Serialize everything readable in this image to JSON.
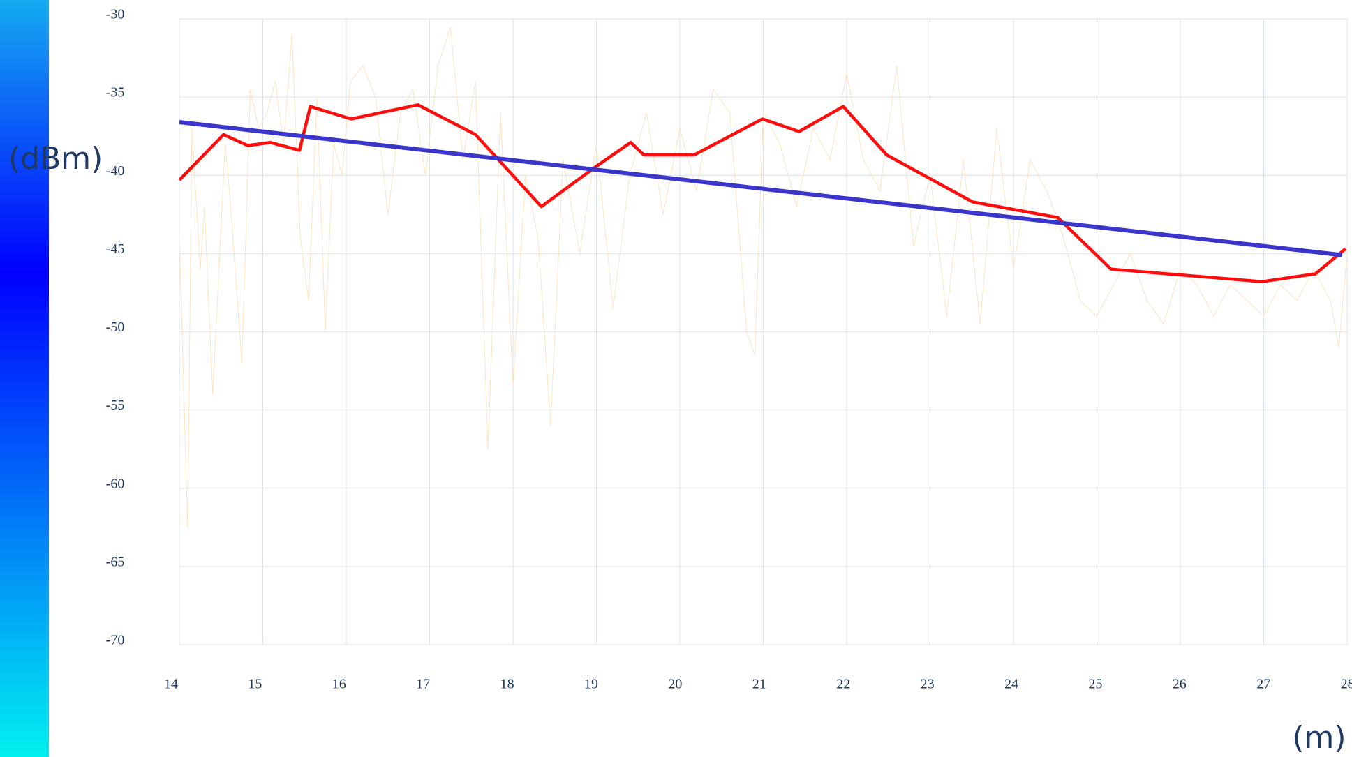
{
  "chart_data": {
    "type": "line",
    "y_label": "(dBm)",
    "x_label": "(m)",
    "xlim": [
      14,
      28
    ],
    "xticks": [
      14,
      15,
      16,
      17,
      18,
      19,
      20,
      21,
      22,
      23,
      24,
      25,
      26,
      27,
      28
    ],
    "ylim": [
      -70,
      -30
    ],
    "yticks": [
      -30,
      -35,
      -40,
      -45,
      -50,
      -55,
      -60,
      -65,
      -70
    ],
    "grid": true,
    "series": [
      {
        "color": "#fde3c4",
        "width": 1,
        "x": [
          14.0,
          14.1,
          14.15,
          14.25,
          14.3,
          14.4,
          14.55,
          14.6,
          14.75,
          14.85,
          14.95,
          15.05,
          15.15,
          15.25,
          15.35,
          15.45,
          15.55,
          15.65,
          15.75,
          15.85,
          15.95,
          16.05,
          16.2,
          16.35,
          16.5,
          16.65,
          16.8,
          16.95,
          17.1,
          17.25,
          17.4,
          17.55,
          17.7,
          17.85,
          18.0,
          18.15,
          18.3,
          18.45,
          18.6,
          18.8,
          19.0,
          19.2,
          19.4,
          19.6,
          19.8,
          20.0,
          20.2,
          20.4,
          20.6,
          20.8,
          20.9,
          21.0,
          21.2,
          21.4,
          21.6,
          21.8,
          22.0,
          22.2,
          22.4,
          22.6,
          22.8,
          23.0,
          23.2,
          23.4,
          23.6,
          23.8,
          24.0,
          24.2,
          24.4,
          24.6,
          24.8,
          25.0,
          25.2,
          25.4,
          25.6,
          25.8,
          26.0,
          26.2,
          26.4,
          26.6,
          26.8,
          27.0,
          27.2,
          27.4,
          27.6,
          27.8,
          27.9,
          28.0
        ],
        "values": [
          -44,
          -62.5,
          -37,
          -46,
          -42,
          -54,
          -38,
          -41,
          -52,
          -34.5,
          -37,
          -36,
          -34,
          -38,
          -31,
          -44,
          -48,
          -35,
          -50,
          -38,
          -40,
          -34,
          -33,
          -35,
          -42.5,
          -36,
          -34.5,
          -40,
          -33,
          -30.5,
          -39,
          -34,
          -57.5,
          -36,
          -53.5,
          -40,
          -44,
          -56,
          -39,
          -45,
          -38,
          -48.5,
          -40,
          -36,
          -42.5,
          -37,
          -41,
          -34.5,
          -36,
          -50,
          -51.5,
          -36,
          -38,
          -42,
          -37,
          -39,
          -33.5,
          -39,
          -41,
          -33,
          -44.5,
          -40,
          -49,
          -39,
          -49.5,
          -37,
          -46,
          -39,
          -41,
          -44,
          -48,
          -49,
          -47,
          -45,
          -48,
          -49.5,
          -46,
          -47,
          -49,
          -47,
          -48,
          -49,
          -47,
          -48,
          -46,
          -48,
          -51,
          -45
        ]
      },
      {
        "color": "#ff0d0d",
        "width": 4.5,
        "x": [
          14.0,
          14.53,
          14.82,
          15.09,
          15.44,
          15.57,
          16.06,
          16.86,
          17.55,
          18.34,
          18.98,
          19.41,
          19.57,
          20.17,
          20.99,
          21.43,
          21.96,
          22.48,
          23.51,
          24.53,
          25.17,
          26.98,
          27.62,
          27.98
        ],
        "values": [
          -40.3,
          -37.4,
          -38.1,
          -37.9,
          -38.4,
          -35.6,
          -36.4,
          -35.5,
          -37.4,
          -42.0,
          -39.5,
          -37.9,
          -38.7,
          -38.7,
          -36.4,
          -37.2,
          -35.6,
          -38.7,
          -41.7,
          -42.7,
          -46.0,
          -46.8,
          -46.3,
          -44.7
        ]
      },
      {
        "color": "#3a36cc",
        "width": 6,
        "x": [
          14.0,
          27.94
        ],
        "values": [
          -36.6,
          -45.1
        ]
      }
    ]
  }
}
